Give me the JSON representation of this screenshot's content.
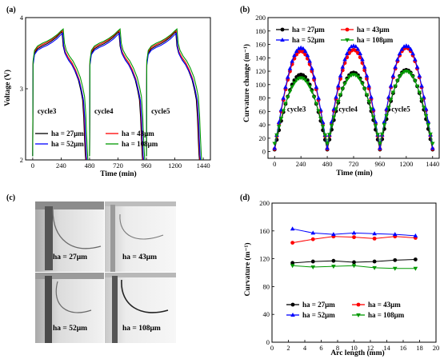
{
  "panels": {
    "a": {
      "label": "(a)"
    },
    "b": {
      "label": "(b)"
    },
    "c": {
      "label": "(c)"
    },
    "d": {
      "label": "(d)"
    }
  },
  "legend_labels": [
    "ha = 27μm",
    "ha = 43μm",
    "ha = 52μm",
    "ha = 108μm"
  ],
  "series_colors": [
    "#000000",
    "#ff0000",
    "#0000ff",
    "#009900"
  ],
  "photo_labels": [
    "ha = 27μm",
    "ha = 43μm",
    "ha = 52μm",
    "ha = 108μm"
  ],
  "chart_data": [
    {
      "id": "a",
      "type": "line",
      "xlabel": "Time (min)",
      "ylabel": "Voltage (V)",
      "xlim": [
        -60,
        1500
      ],
      "ylim": [
        2,
        4
      ],
      "xticks": [
        0,
        240,
        480,
        720,
        960,
        1200,
        1440
      ],
      "yticks": [
        2,
        3,
        4
      ],
      "annotations": [
        {
          "text": "cycle3",
          "x": 120,
          "y": 2.65
        },
        {
          "text": "cycle4",
          "x": 600,
          "y": 2.65
        },
        {
          "text": "cycle5",
          "x": 1080,
          "y": 2.65
        }
      ],
      "legend": "bottom-left",
      "cycle_period": 480,
      "cycle_shape": {
        "t": [
          0,
          3,
          15,
          40,
          80,
          120,
          160,
          200,
          230,
          250,
          260,
          275,
          300,
          330,
          360,
          390,
          410,
          425,
          435,
          442,
          448,
          452
        ],
        "v": [
          2.05,
          3.35,
          3.5,
          3.56,
          3.6,
          3.63,
          3.67,
          3.72,
          3.77,
          3.8,
          3.6,
          3.5,
          3.42,
          3.35,
          3.25,
          3.12,
          2.98,
          2.85,
          2.6,
          2.3,
          2.08,
          2.0
        ]
      },
      "series": [
        {
          "name": "ha = 27μm",
          "time_scale": 0.99,
          "voltage_offset": 0.0
        },
        {
          "name": "ha = 43μm",
          "time_scale": 1.0,
          "voltage_offset": 0.02
        },
        {
          "name": "ha = 52μm",
          "time_scale": 1.01,
          "voltage_offset": -0.02
        },
        {
          "name": "ha = 108μm",
          "time_scale": 1.03,
          "voltage_offset": 0.04
        }
      ]
    },
    {
      "id": "b",
      "type": "line",
      "xlabel": "Time (min)",
      "ylabel": "Curvature change (m⁻¹)",
      "xlim": [
        -60,
        1500
      ],
      "ylim": [
        -10,
        200
      ],
      "xticks": [
        0,
        240,
        480,
        720,
        960,
        1200,
        1440
      ],
      "yticks": [
        0,
        20,
        40,
        60,
        80,
        100,
        120,
        140,
        160,
        180,
        200
      ],
      "annotations": [
        {
          "text": "cycle3",
          "x": 200,
          "y": 60
        },
        {
          "text": "cycle4",
          "x": 670,
          "y": 60
        },
        {
          "text": "cycle5",
          "x": 1150,
          "y": 60
        }
      ],
      "legend": "top",
      "series": [
        {
          "name": "ha = 27μm",
          "peaks": [
            [
              240,
              115
            ],
            [
              720,
              118
            ],
            [
              1200,
              122
            ]
          ],
          "min": 3
        },
        {
          "name": "ha = 43μm",
          "peaks": [
            [
              240,
              150
            ],
            [
              720,
              152
            ],
            [
              1200,
              155
            ]
          ],
          "min": 4
        },
        {
          "name": "ha = 52μm",
          "peaks": [
            [
              240,
              155
            ],
            [
              720,
              158
            ],
            [
              1200,
              158
            ]
          ],
          "min": 5
        },
        {
          "name": "ha = 108μm",
          "peaks": [
            [
              240,
              110
            ],
            [
              720,
              115
            ],
            [
              1200,
              120
            ]
          ],
          "min": 12
        }
      ]
    },
    {
      "id": "d",
      "type": "line",
      "xlabel": "Arc length (mm)",
      "ylabel": "Curvature (m⁻¹)",
      "xlim": [
        0,
        20
      ],
      "ylim": [
        0,
        200
      ],
      "xticks": [
        0,
        2,
        4,
        6,
        8,
        10,
        12,
        14,
        16,
        18,
        20
      ],
      "yticks": [
        0,
        40,
        80,
        120,
        160,
        200
      ],
      "legend": "bottom",
      "x": [
        2.5,
        5,
        7.5,
        10,
        12.5,
        15,
        17.5
      ],
      "series": [
        {
          "name": "ha = 27μm",
          "values": [
            114,
            116,
            117,
            115,
            116,
            118,
            119
          ]
        },
        {
          "name": "ha = 43μm",
          "values": [
            143,
            148,
            152,
            151,
            149,
            152,
            150
          ]
        },
        {
          "name": "ha = 52μm",
          "values": [
            163,
            157,
            155,
            157,
            156,
            155,
            153
          ]
        },
        {
          "name": "ha = 108μm",
          "values": [
            110,
            108,
            109,
            110,
            107,
            106,
            106
          ]
        }
      ]
    }
  ]
}
